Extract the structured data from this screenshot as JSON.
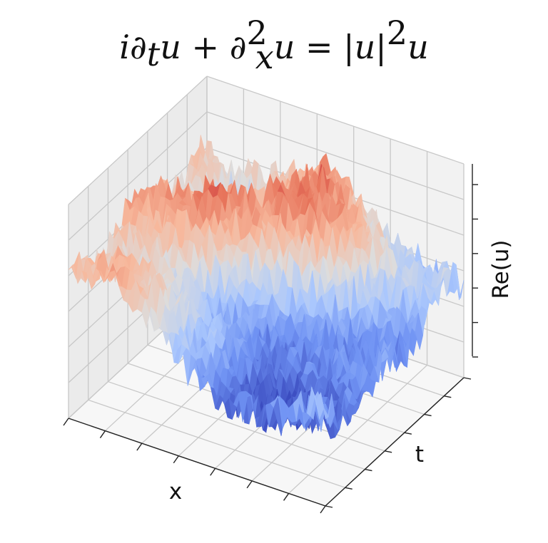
{
  "chart_data": {
    "type": "surface3d",
    "title": {
      "parts": [
        {
          "t": "i∂",
          "style": "it"
        },
        {
          "t": "t",
          "style": "sub"
        },
        {
          "t": "u + ",
          "style": "it"
        },
        {
          "t": "∂",
          "style": "it"
        },
        {
          "t": "2",
          "style": "sup-stack"
        },
        {
          "t": "x",
          "style": "sub-stack"
        },
        {
          "t": "u = ",
          "style": "it"
        },
        {
          "t": "|",
          "style": "up"
        },
        {
          "t": "u",
          "style": "it"
        },
        {
          "t": "|",
          "style": "up"
        },
        {
          "t": "2",
          "style": "sup"
        },
        {
          "t": "u",
          "style": "it"
        }
      ]
    },
    "xlabel": "x",
    "ylabel": "t",
    "zlabel": "Re(u)",
    "grid": true,
    "tick_labels_shown": false,
    "colormap": [
      "#3b4cc0",
      "#6f92f3",
      "#aac7fd",
      "#dddcdc",
      "#f7b89c",
      "#e7745b",
      "#b40426"
    ],
    "surface_description_values": {
      "x_range": [
        0,
        1
      ],
      "t_range": [
        0,
        1
      ],
      "z_range": [
        -1,
        1
      ]
    }
  }
}
